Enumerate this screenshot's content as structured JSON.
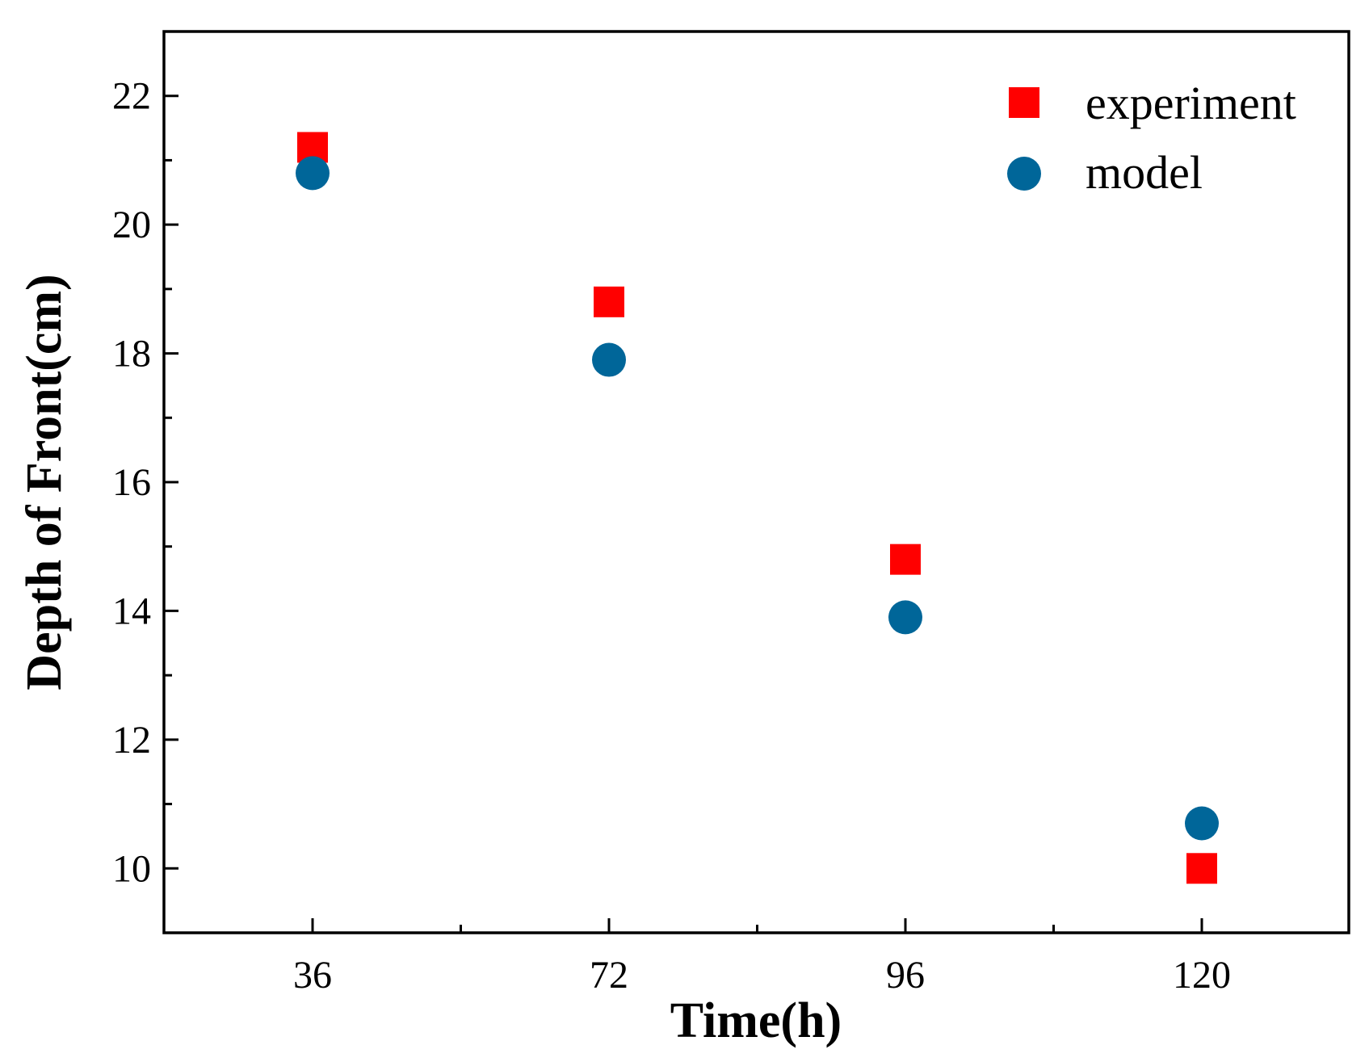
{
  "chart_data": {
    "type": "scatter",
    "title": "",
    "xlabel": "Time(h)",
    "ylabel": "Depth of Front(cm)",
    "categories": [
      "36",
      "72",
      "96",
      "120"
    ],
    "x_minor_ticks": true,
    "ylim": [
      9,
      23
    ],
    "yticks": [
      10,
      12,
      14,
      16,
      18,
      20,
      22
    ],
    "grid": false,
    "legend_position": "top-right",
    "series": [
      {
        "name": "experiment",
        "marker": "square",
        "color": "#ff0000",
        "values": [
          21.2,
          18.8,
          14.8,
          10.0
        ]
      },
      {
        "name": "model",
        "marker": "circle",
        "color": "#006699",
        "values": [
          20.8,
          17.9,
          13.9,
          10.7
        ]
      }
    ]
  }
}
